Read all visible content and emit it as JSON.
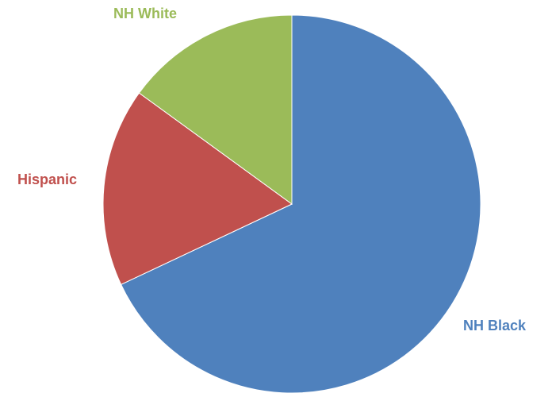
{
  "chart_data": {
    "type": "pie",
    "title": "",
    "slices": [
      {
        "name": "NH Black",
        "value": 68,
        "color": "#4F81BD"
      },
      {
        "name": "Hispanic",
        "value": 17,
        "color": "#C0504D"
      },
      {
        "name": "NH White",
        "value": 15,
        "color": "#9BBB59"
      }
    ],
    "start_angle": "12 o'clock",
    "direction": "clockwise",
    "legend": "none",
    "data_labels": "category names outside slices"
  }
}
